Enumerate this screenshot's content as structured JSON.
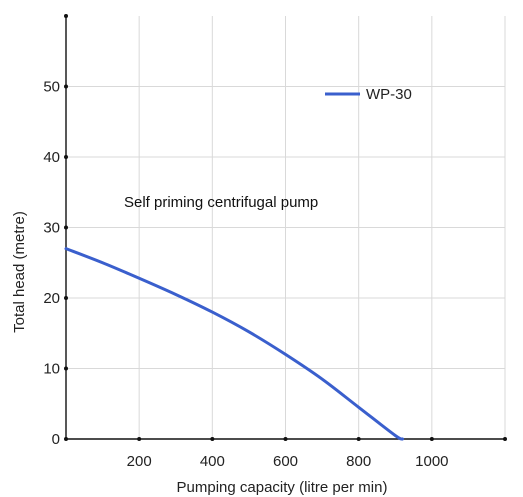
{
  "chart_data": {
    "type": "line",
    "xlabel": "Pumping capacity (litre per min)",
    "ylabel": "Total head (metre)",
    "annotation": "Self priming centrifugal pump",
    "xlim": [
      0,
      1200
    ],
    "ylim": [
      0,
      60
    ],
    "xticks": [
      200,
      400,
      600,
      800,
      1000
    ],
    "xtick_labels": [
      "200",
      "400",
      "600",
      "800",
      "1000"
    ],
    "yticks": [
      0,
      10,
      20,
      30,
      40,
      50
    ],
    "ytick_labels": [
      "0",
      "10",
      "20",
      "30",
      "40",
      "50"
    ],
    "grid": true,
    "legend_position": "top-right",
    "series": [
      {
        "name": "WP-30",
        "color": "#3a5fcd",
        "x": [
          0,
          100,
          200,
          300,
          400,
          500,
          600,
          700,
          800,
          900,
          920
        ],
        "y": [
          27,
          25,
          22.8,
          20.5,
          18,
          15.2,
          12,
          8.5,
          4.5,
          0.5,
          0
        ]
      }
    ]
  }
}
